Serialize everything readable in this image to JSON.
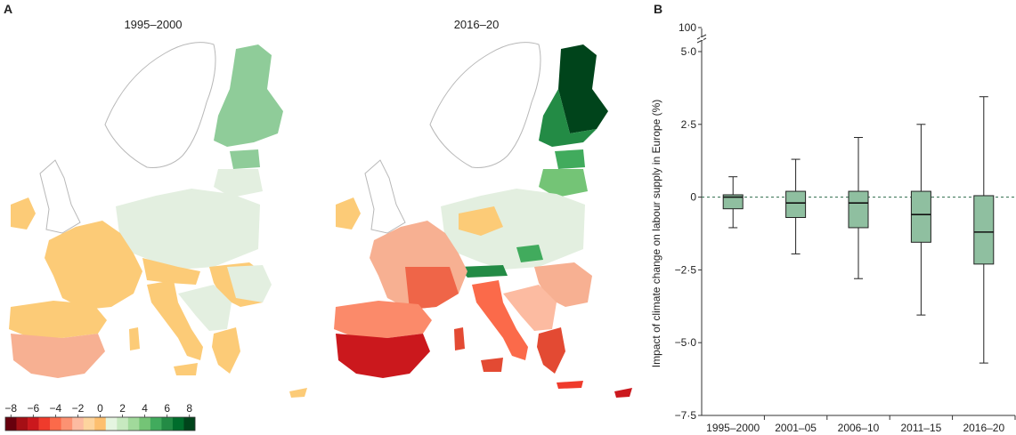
{
  "panel_a": {
    "letter": "A",
    "maps": [
      {
        "title": "1995–2000"
      },
      {
        "title": "2016–20"
      }
    ],
    "legend": {
      "ticks": [
        "−8",
        "−6",
        "−4",
        "−2",
        "0",
        "2",
        "4",
        "6",
        "8"
      ],
      "colors": [
        "#67000d",
        "#a50f15",
        "#cb181d",
        "#ef3b2c",
        "#fb6a4a",
        "#fc9272",
        "#fcbba1",
        "#fdd49e",
        "#fdbf6f",
        "#e5f5e0",
        "#c7e9c0",
        "#a1d99b",
        "#74c476",
        "#41ab5d",
        "#238b45",
        "#006d2c",
        "#00441b"
      ]
    }
  },
  "panel_b": {
    "letter": "B"
  },
  "chart_data": {
    "type": "box",
    "ylabel": "Impact of climate change on labour supply in Europe (%)",
    "xlabel": "",
    "ylim": [
      -7.5,
      5.0
    ],
    "yticks": [
      "5·0",
      "2·5",
      "0",
      "−2·5",
      "−5·0",
      "−7·5"
    ],
    "ytick_values": [
      5.0,
      2.5,
      0,
      -2.5,
      -5.0,
      -7.5
    ],
    "ybreak_label": "100",
    "reference_line": 0,
    "box_color": "#8fbfa0",
    "categories": [
      "1995–2000",
      "2001–05",
      "2006–10",
      "2011–15",
      "2016–20"
    ],
    "boxes": [
      {
        "min": -1.05,
        "q1": -0.4,
        "median": 0.0,
        "q3": 0.08,
        "max": 0.7
      },
      {
        "min": -1.95,
        "q1": -0.7,
        "median": -0.2,
        "q3": 0.2,
        "max": 1.3
      },
      {
        "min": -2.8,
        "q1": -1.05,
        "median": -0.2,
        "q3": 0.2,
        "max": 2.05
      },
      {
        "min": -4.05,
        "q1": -1.55,
        "median": -0.6,
        "q3": 0.2,
        "max": 2.5
      },
      {
        "min": -5.7,
        "q1": -2.3,
        "median": -1.2,
        "q3": 0.05,
        "max": 3.45
      }
    ]
  }
}
